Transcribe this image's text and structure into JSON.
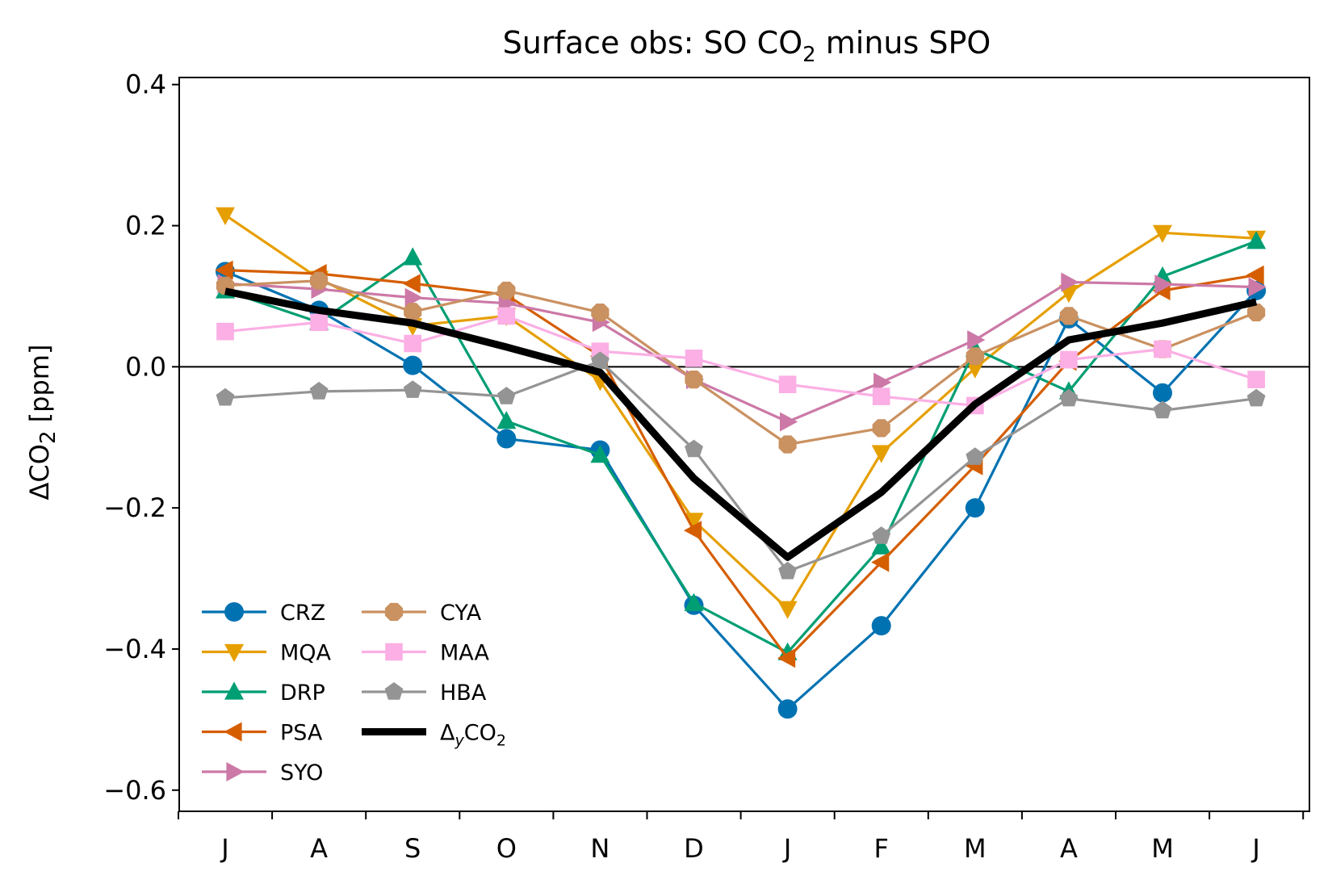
{
  "chart_data": {
    "type": "line",
    "title": {
      "pre": "Surface obs: SO CO",
      "sub": "2",
      "post": " minus SPO"
    },
    "ylabel": {
      "pre": "ΔCO",
      "sub": "2",
      "post": " [ppm]"
    },
    "xlabel": "",
    "categories": [
      "J",
      "A",
      "S",
      "O",
      "N",
      "D",
      "J",
      "F",
      "M",
      "A",
      "M",
      "J"
    ],
    "ylim": [
      -0.63,
      0.41
    ],
    "yticks": [
      0.4,
      0.2,
      0.0,
      -0.2,
      -0.4,
      -0.6
    ],
    "ytick_labels": [
      "0.4",
      "0.2",
      "0.0",
      "−0.2",
      "−0.4",
      "−0.6"
    ],
    "zero_line": true,
    "grid": false,
    "legend": {
      "placement": "lower-left",
      "columns": 2
    },
    "series": [
      {
        "name": "CRZ",
        "color": "#0072b2",
        "marker": "circle",
        "values": [
          0.135,
          0.08,
          0.002,
          -0.102,
          -0.118,
          -0.338,
          -0.485,
          -0.367,
          -0.2,
          0.068,
          -0.037,
          0.108
        ]
      },
      {
        "name": "MQA",
        "color": "#e69f00",
        "marker": "triangle-down",
        "values": [
          0.215,
          0.125,
          0.058,
          0.072,
          -0.02,
          -0.218,
          -0.343,
          -0.122,
          -0.002,
          0.105,
          0.19,
          0.182
        ]
      },
      {
        "name": "DRP",
        "color": "#009e73",
        "marker": "triangle-up",
        "values": [
          0.108,
          0.063,
          0.155,
          -0.077,
          -0.125,
          -0.335,
          -0.405,
          -0.255,
          0.025,
          -0.035,
          0.128,
          0.178
        ]
      },
      {
        "name": "PSA",
        "color": "#d55e00",
        "marker": "triangle-left",
        "values": [
          0.137,
          0.132,
          0.118,
          0.102,
          0.015,
          -0.232,
          -0.413,
          -0.277,
          -0.14,
          0.008,
          0.108,
          0.13
        ]
      },
      {
        "name": "SYO",
        "color": "#cc79a7",
        "marker": "triangle-right",
        "values": [
          0.118,
          0.11,
          0.098,
          0.09,
          0.063,
          -0.018,
          -0.078,
          -0.022,
          0.038,
          0.12,
          0.117,
          0.113
        ]
      },
      {
        "name": "CYA",
        "color": "#ca9161",
        "marker": "octagon",
        "values": [
          0.115,
          0.122,
          0.078,
          0.108,
          0.077,
          -0.018,
          -0.11,
          -0.087,
          0.015,
          0.072,
          0.025,
          0.077
        ]
      },
      {
        "name": "MAA",
        "color": "#fbafe4",
        "marker": "square",
        "values": [
          0.05,
          0.063,
          0.033,
          0.072,
          0.022,
          0.012,
          -0.025,
          -0.042,
          -0.055,
          0.01,
          0.025,
          -0.018
        ]
      },
      {
        "name": "HBA",
        "color": "#949494",
        "marker": "pentagon",
        "values": [
          -0.044,
          -0.035,
          -0.033,
          -0.042,
          0.008,
          -0.117,
          -0.29,
          -0.24,
          -0.128,
          -0.045,
          -0.062,
          -0.045
        ]
      },
      {
        "name": "ΔyCO2",
        "label": {
          "pre": "Δ",
          "sub_italic": "y",
          "mid": "CO",
          "sub": "2"
        },
        "color": "#000000",
        "marker": "none",
        "thick": true,
        "values": [
          0.107,
          0.08,
          0.062,
          0.028,
          -0.008,
          -0.158,
          -0.27,
          -0.178,
          -0.053,
          0.038,
          0.062,
          0.092
        ]
      }
    ]
  }
}
